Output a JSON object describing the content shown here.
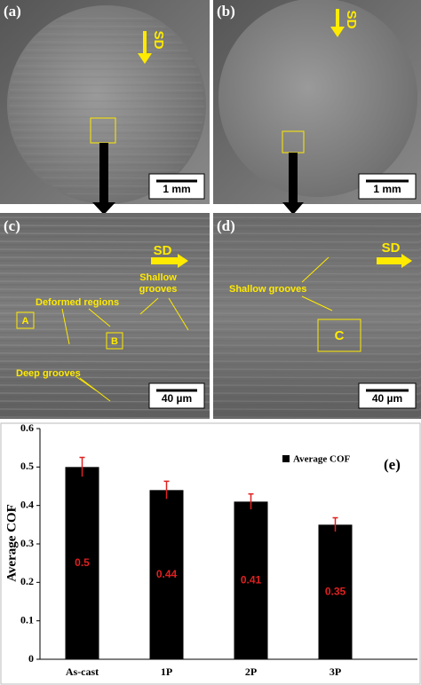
{
  "panels": [
    {
      "label": "(a)",
      "scale": "1 mm",
      "direction": "SD"
    },
    {
      "label": "(b)",
      "scale": "1 mm",
      "direction": "SD"
    },
    {
      "label": "(c)",
      "scale": "40 µm",
      "direction": "SD",
      "annotations": [
        "Deformed regions",
        "Shallow",
        "grooves",
        "A",
        "B",
        "Deep grooves"
      ]
    },
    {
      "label": "(d)",
      "scale": "40 µm",
      "direction": "SD",
      "annotations": [
        "Shallow grooves",
        "C"
      ]
    }
  ],
  "chart_data": {
    "type": "bar",
    "panel_label": "(e)",
    "y_label": "Average COF",
    "categories": [
      "As-cast",
      "1P",
      "2P",
      "3P"
    ],
    "series": [
      {
        "name": "Average COF",
        "color": "#000000",
        "values": [
          0.5,
          0.44,
          0.41,
          0.35
        ],
        "errors": [
          0.025,
          0.023,
          0.02,
          0.018
        ]
      }
    ],
    "value_color": "#e02020",
    "error_color": "#e02020",
    "ylim": [
      0,
      0.6
    ],
    "yticks": [
      0,
      0.1,
      0.2,
      0.3,
      0.4,
      0.5,
      0.6
    ],
    "grid": false
  }
}
